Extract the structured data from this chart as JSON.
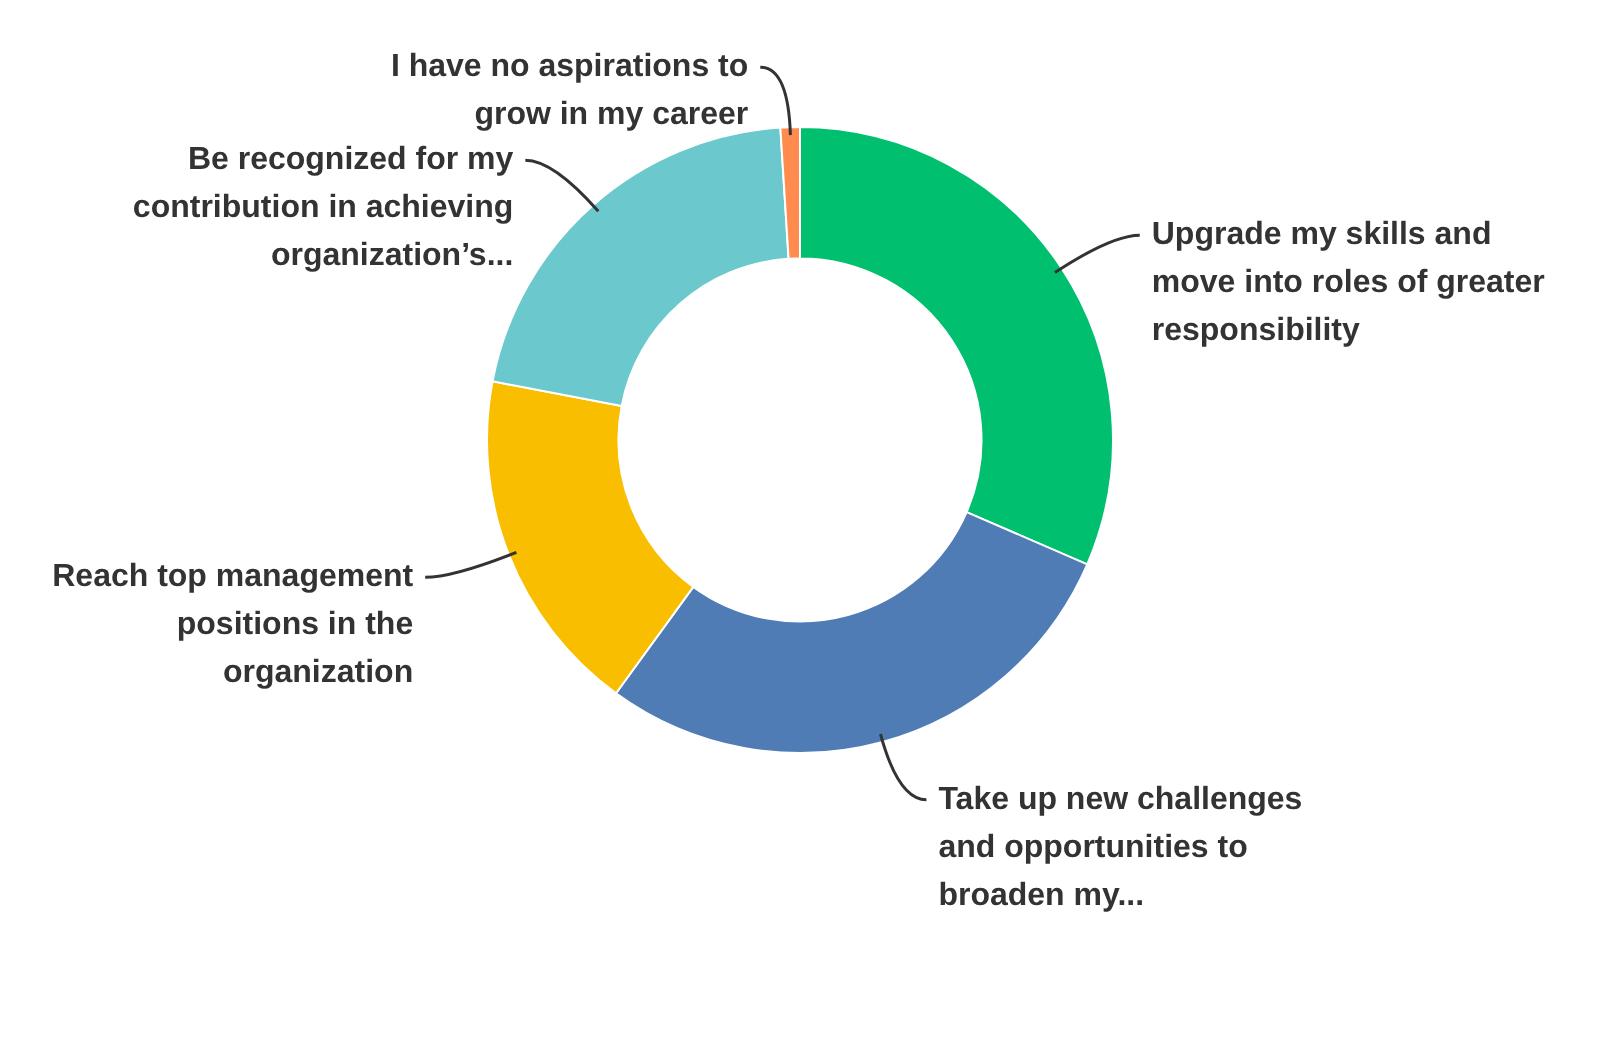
{
  "chart_data": {
    "type": "donut",
    "categories": [
      "Upgrade my skills and move into roles of greater responsibility",
      "Take up new challenges and opportunities to broaden my...",
      "Reach top management positions in the organization",
      "Be recognized for my contribution in achieving organization’s...",
      "I have no aspirations to grow in my career"
    ],
    "values": [
      31.5,
      28.5,
      18,
      21,
      1
    ],
    "colors": [
      "#00bf6f",
      "#507cb6",
      "#f9be00",
      "#6bc8cd",
      "#ff8b4f"
    ],
    "legend": false
  }
}
